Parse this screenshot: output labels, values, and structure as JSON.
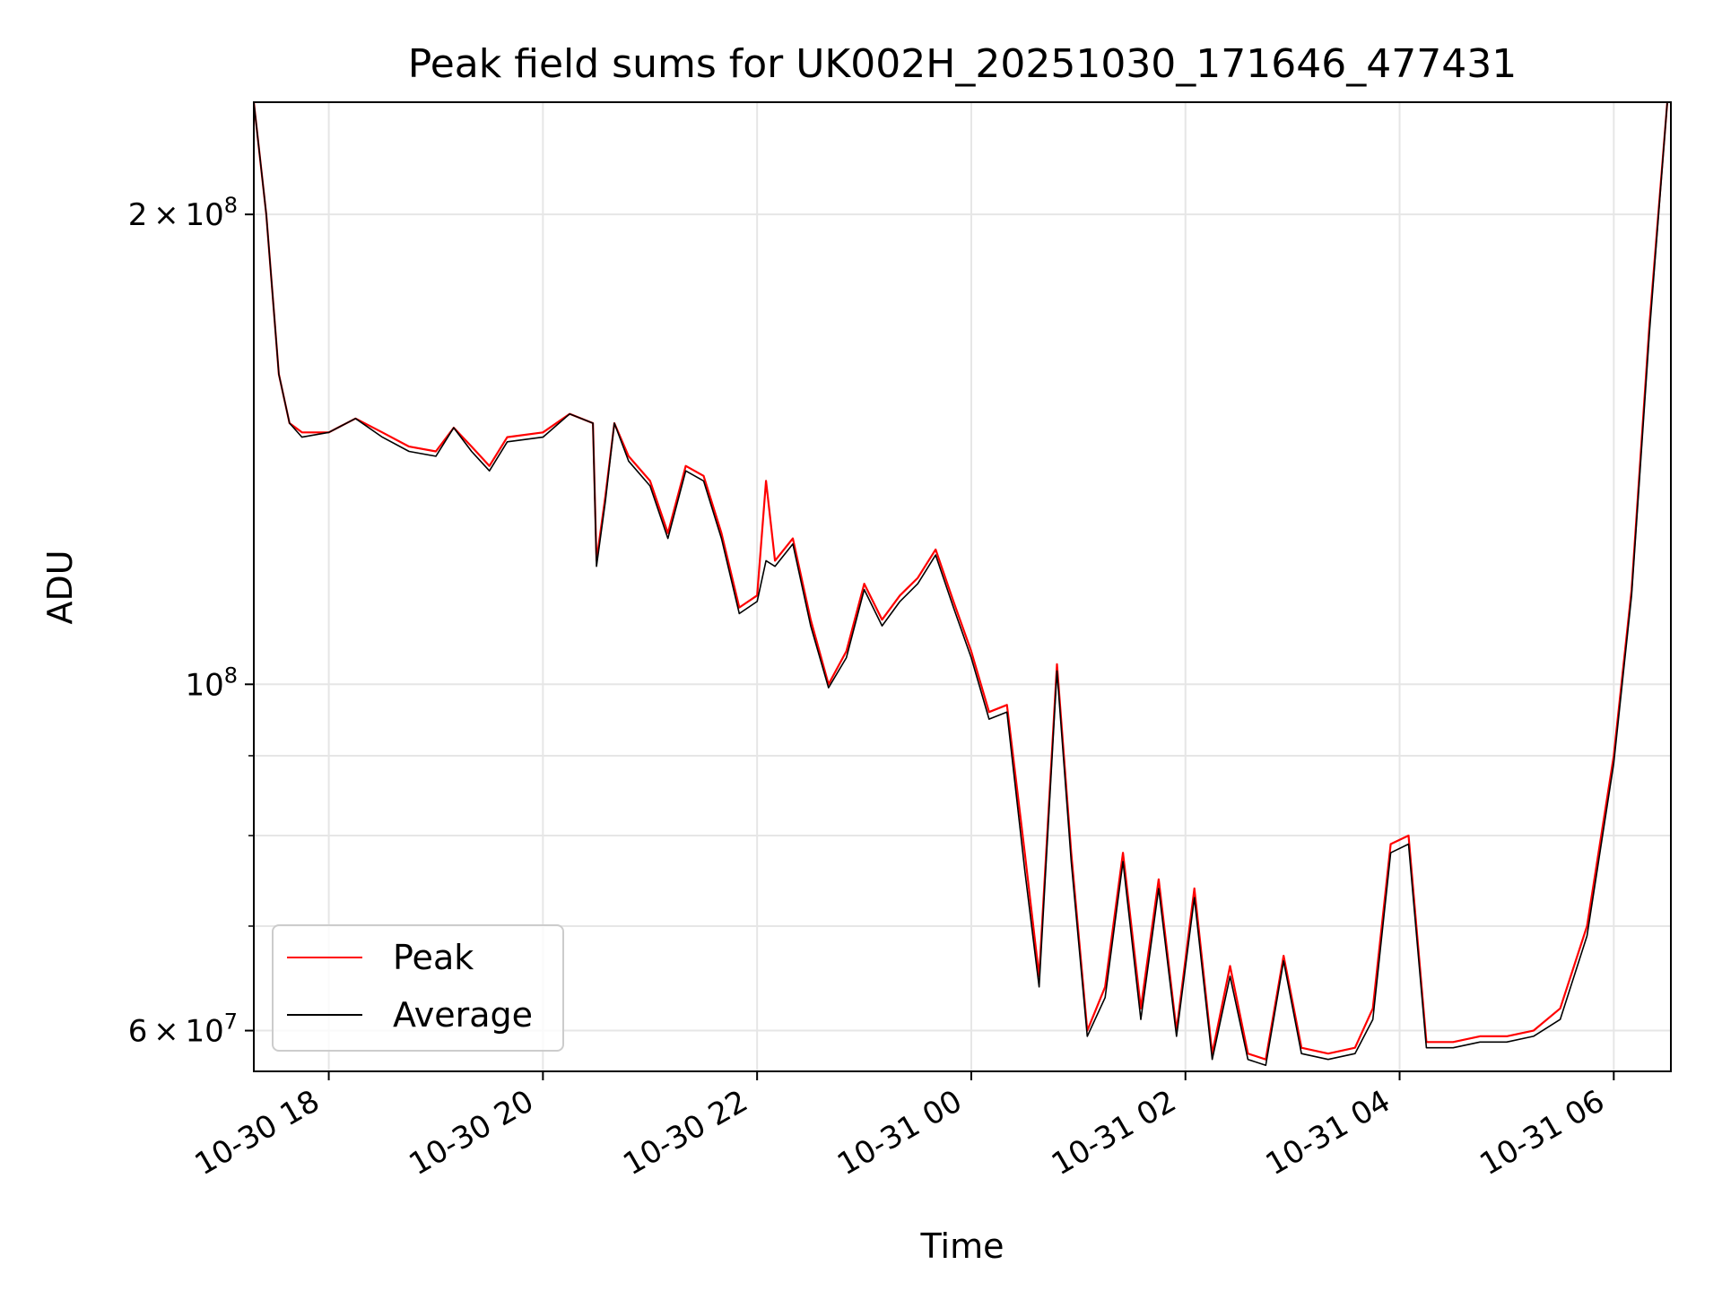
{
  "chart_data": {
    "type": "line",
    "title": "Peak field sums for UK002H_20251030_171646_477431",
    "xlabel": "Time",
    "ylabel": "ADU",
    "yscale": "log",
    "xlim": [
      "2025-10-30T17:18",
      "2025-10-31T06:32"
    ],
    "ylim": [
      56500000,
      236000000
    ],
    "grid": true,
    "legend_position": "lower-left",
    "x_ticks": [
      {
        "t": "2025-10-30T18:00",
        "label": "10-30 18"
      },
      {
        "t": "2025-10-30T20:00",
        "label": "10-30 20"
      },
      {
        "t": "2025-10-30T22:00",
        "label": "10-30 22"
      },
      {
        "t": "2025-10-31T00:00",
        "label": "10-31 00"
      },
      {
        "t": "2025-10-31T02:00",
        "label": "10-31 02"
      },
      {
        "t": "2025-10-31T04:00",
        "label": "10-31 04"
      },
      {
        "t": "2025-10-31T06:00",
        "label": "10-31 06"
      }
    ],
    "y_major_ticks": [
      {
        "value": 60000000,
        "mantissa": "6",
        "exponent": "7"
      },
      {
        "value": 100000000,
        "mantissa": "",
        "exponent": "8"
      },
      {
        "value": 200000000,
        "mantissa": "2",
        "exponent": "8"
      }
    ],
    "y_minor_ticks": [
      70000000,
      80000000,
      90000000
    ],
    "series": [
      {
        "name": "Peak",
        "color": "#ff0000",
        "points": [
          [
            "2025-10-30T17:18",
            236000000
          ],
          [
            "2025-10-30T17:25",
            200000000
          ],
          [
            "2025-10-30T17:32",
            158000000
          ],
          [
            "2025-10-30T17:38",
            147000000
          ],
          [
            "2025-10-30T17:45",
            145000000
          ],
          [
            "2025-10-30T18:00",
            145000000
          ],
          [
            "2025-10-30T18:15",
            148000000
          ],
          [
            "2025-10-30T18:30",
            145000000
          ],
          [
            "2025-10-30T18:45",
            142000000
          ],
          [
            "2025-10-30T19:00",
            141000000
          ],
          [
            "2025-10-30T19:10",
            146000000
          ],
          [
            "2025-10-30T19:20",
            142000000
          ],
          [
            "2025-10-30T19:30",
            138000000
          ],
          [
            "2025-10-30T19:40",
            144000000
          ],
          [
            "2025-10-30T20:00",
            145000000
          ],
          [
            "2025-10-30T20:15",
            149000000
          ],
          [
            "2025-10-30T20:28",
            147000000
          ],
          [
            "2025-10-30T20:30",
            120000000
          ],
          [
            "2025-10-30T20:35",
            132000000
          ],
          [
            "2025-10-30T20:40",
            147000000
          ],
          [
            "2025-10-30T20:48",
            140000000
          ],
          [
            "2025-10-30T21:00",
            135000000
          ],
          [
            "2025-10-30T21:10",
            125000000
          ],
          [
            "2025-10-30T21:20",
            138000000
          ],
          [
            "2025-10-30T21:30",
            136000000
          ],
          [
            "2025-10-30T21:40",
            125000000
          ],
          [
            "2025-10-30T21:50",
            112000000
          ],
          [
            "2025-10-30T22:00",
            114000000
          ],
          [
            "2025-10-30T22:05",
            135000000
          ],
          [
            "2025-10-30T22:10",
            120000000
          ],
          [
            "2025-10-30T22:20",
            124000000
          ],
          [
            "2025-10-30T22:30",
            110000000
          ],
          [
            "2025-10-30T22:40",
            100000000
          ],
          [
            "2025-10-30T22:50",
            105000000
          ],
          [
            "2025-10-30T23:00",
            116000000
          ],
          [
            "2025-10-30T23:10",
            110000000
          ],
          [
            "2025-10-30T23:20",
            114000000
          ],
          [
            "2025-10-30T23:30",
            117000000
          ],
          [
            "2025-10-30T23:40",
            122000000
          ],
          [
            "2025-10-30T23:50",
            113000000
          ],
          [
            "2025-10-31T00:00",
            105000000
          ],
          [
            "2025-10-31T00:10",
            96000000
          ],
          [
            "2025-10-31T00:20",
            97000000
          ],
          [
            "2025-10-31T00:30",
            78000000
          ],
          [
            "2025-10-31T00:38",
            65000000
          ],
          [
            "2025-10-31T00:48",
            103000000
          ],
          [
            "2025-10-31T00:56",
            78000000
          ],
          [
            "2025-10-31T01:05",
            60000000
          ],
          [
            "2025-10-31T01:15",
            64000000
          ],
          [
            "2025-10-31T01:25",
            78000000
          ],
          [
            "2025-10-31T01:35",
            62000000
          ],
          [
            "2025-10-31T01:45",
            75000000
          ],
          [
            "2025-10-31T01:55",
            60000000
          ],
          [
            "2025-10-31T02:05",
            74000000
          ],
          [
            "2025-10-31T02:15",
            58000000
          ],
          [
            "2025-10-31T02:25",
            66000000
          ],
          [
            "2025-10-31T02:35",
            58000000
          ],
          [
            "2025-10-31T02:45",
            57500000
          ],
          [
            "2025-10-31T02:55",
            67000000
          ],
          [
            "2025-10-31T03:05",
            58500000
          ],
          [
            "2025-10-31T03:20",
            58000000
          ],
          [
            "2025-10-31T03:35",
            58500000
          ],
          [
            "2025-10-31T03:45",
            62000000
          ],
          [
            "2025-10-31T03:55",
            79000000
          ],
          [
            "2025-10-31T04:05",
            80000000
          ],
          [
            "2025-10-31T04:15",
            59000000
          ],
          [
            "2025-10-31T04:30",
            59000000
          ],
          [
            "2025-10-31T04:45",
            59500000
          ],
          [
            "2025-10-31T05:00",
            59500000
          ],
          [
            "2025-10-31T05:15",
            60000000
          ],
          [
            "2025-10-31T05:30",
            62000000
          ],
          [
            "2025-10-31T05:45",
            70000000
          ],
          [
            "2025-10-31T06:00",
            90000000
          ],
          [
            "2025-10-31T06:10",
            115000000
          ],
          [
            "2025-10-31T06:20",
            170000000
          ],
          [
            "2025-10-31T06:30",
            236000000
          ]
        ]
      },
      {
        "name": "Average",
        "color": "#000000",
        "points": [
          [
            "2025-10-30T17:18",
            236000000
          ],
          [
            "2025-10-30T17:25",
            200000000
          ],
          [
            "2025-10-30T17:32",
            158000000
          ],
          [
            "2025-10-30T17:38",
            147000000
          ],
          [
            "2025-10-30T17:45",
            144000000
          ],
          [
            "2025-10-30T18:00",
            145000000
          ],
          [
            "2025-10-30T18:15",
            148000000
          ],
          [
            "2025-10-30T18:30",
            144000000
          ],
          [
            "2025-10-30T18:45",
            141000000
          ],
          [
            "2025-10-30T19:00",
            140000000
          ],
          [
            "2025-10-30T19:10",
            146000000
          ],
          [
            "2025-10-30T19:20",
            141000000
          ],
          [
            "2025-10-30T19:30",
            137000000
          ],
          [
            "2025-10-30T19:40",
            143000000
          ],
          [
            "2025-10-30T20:00",
            144000000
          ],
          [
            "2025-10-30T20:15",
            149000000
          ],
          [
            "2025-10-30T20:28",
            147000000
          ],
          [
            "2025-10-30T20:30",
            119000000
          ],
          [
            "2025-10-30T20:35",
            131000000
          ],
          [
            "2025-10-30T20:40",
            147000000
          ],
          [
            "2025-10-30T20:48",
            139000000
          ],
          [
            "2025-10-30T21:00",
            134000000
          ],
          [
            "2025-10-30T21:10",
            124000000
          ],
          [
            "2025-10-30T21:20",
            137000000
          ],
          [
            "2025-10-30T21:30",
            135000000
          ],
          [
            "2025-10-30T21:40",
            124000000
          ],
          [
            "2025-10-30T21:50",
            111000000
          ],
          [
            "2025-10-30T22:00",
            113000000
          ],
          [
            "2025-10-30T22:05",
            120000000
          ],
          [
            "2025-10-30T22:10",
            119000000
          ],
          [
            "2025-10-30T22:20",
            123000000
          ],
          [
            "2025-10-30T22:30",
            109000000
          ],
          [
            "2025-10-30T22:40",
            99500000
          ],
          [
            "2025-10-30T22:50",
            104000000
          ],
          [
            "2025-10-30T23:00",
            115000000
          ],
          [
            "2025-10-30T23:10",
            109000000
          ],
          [
            "2025-10-30T23:20",
            113000000
          ],
          [
            "2025-10-30T23:30",
            116000000
          ],
          [
            "2025-10-30T23:40",
            121000000
          ],
          [
            "2025-10-30T23:50",
            112000000
          ],
          [
            "2025-10-31T00:00",
            104000000
          ],
          [
            "2025-10-31T00:10",
            95000000
          ],
          [
            "2025-10-31T00:20",
            96000000
          ],
          [
            "2025-10-31T00:30",
            76000000
          ],
          [
            "2025-10-31T00:38",
            64000000
          ],
          [
            "2025-10-31T00:48",
            102000000
          ],
          [
            "2025-10-31T00:56",
            77000000
          ],
          [
            "2025-10-31T01:05",
            59500000
          ],
          [
            "2025-10-31T01:15",
            63000000
          ],
          [
            "2025-10-31T01:25",
            77000000
          ],
          [
            "2025-10-31T01:35",
            61000000
          ],
          [
            "2025-10-31T01:45",
            74000000
          ],
          [
            "2025-10-31T01:55",
            59500000
          ],
          [
            "2025-10-31T02:05",
            73000000
          ],
          [
            "2025-10-31T02:15",
            57500000
          ],
          [
            "2025-10-31T02:25",
            65000000
          ],
          [
            "2025-10-31T02:35",
            57500000
          ],
          [
            "2025-10-31T02:45",
            57000000
          ],
          [
            "2025-10-31T02:55",
            66500000
          ],
          [
            "2025-10-31T03:05",
            58000000
          ],
          [
            "2025-10-31T03:20",
            57500000
          ],
          [
            "2025-10-31T03:35",
            58000000
          ],
          [
            "2025-10-31T03:45",
            61000000
          ],
          [
            "2025-10-31T03:55",
            78000000
          ],
          [
            "2025-10-31T04:05",
            79000000
          ],
          [
            "2025-10-31T04:15",
            58500000
          ],
          [
            "2025-10-31T04:30",
            58500000
          ],
          [
            "2025-10-31T04:45",
            59000000
          ],
          [
            "2025-10-31T05:00",
            59000000
          ],
          [
            "2025-10-31T05:15",
            59500000
          ],
          [
            "2025-10-31T05:30",
            61000000
          ],
          [
            "2025-10-31T05:45",
            69000000
          ],
          [
            "2025-10-31T06:00",
            89000000
          ],
          [
            "2025-10-31T06:10",
            114000000
          ],
          [
            "2025-10-31T06:20",
            168000000
          ],
          [
            "2025-10-31T06:30",
            236000000
          ]
        ]
      }
    ],
    "legend": [
      {
        "label": "Peak",
        "color": "#ff0000"
      },
      {
        "label": "Average",
        "color": "#000000"
      }
    ]
  }
}
